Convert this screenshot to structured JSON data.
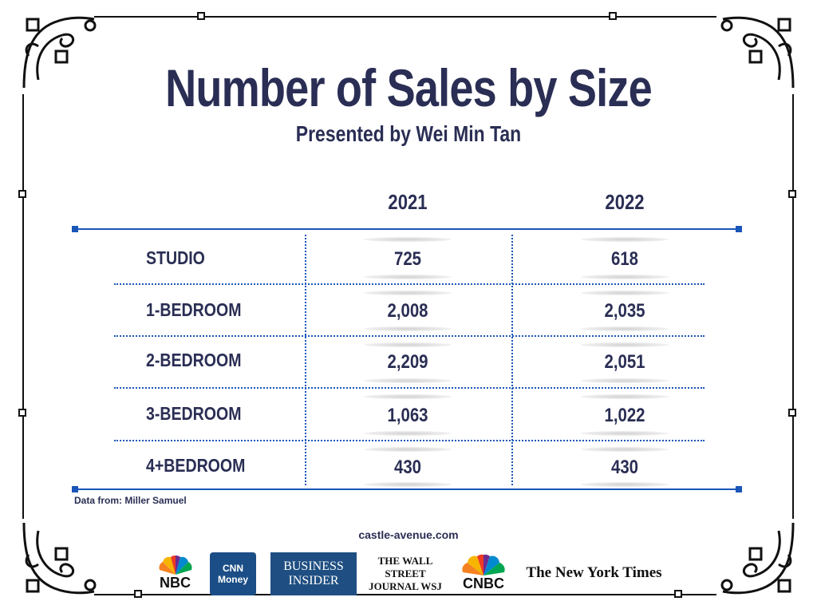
{
  "chart_data": {
    "type": "table",
    "title": "Number of Sales by Size",
    "subtitle": "Presented by Wei Min Tan",
    "columns": [
      "2021",
      "2022"
    ],
    "rows": [
      {
        "label": "STUDIO",
        "values": [
          "725",
          "618"
        ]
      },
      {
        "label": "1-BEDROOM",
        "values": [
          "2,008",
          "2,035"
        ]
      },
      {
        "label": "2-BEDROOM",
        "values": [
          "2,209",
          "2,051"
        ]
      },
      {
        "label": "3-BEDROOM",
        "values": [
          "1,063",
          "1,022"
        ]
      },
      {
        "label": "4+BEDROOM",
        "values": [
          "430",
          "430"
        ]
      }
    ],
    "source": "Data from: Miller Samuel"
  },
  "footer": {
    "site": "castle-avenue.com",
    "logos": [
      {
        "name": "nbc-logo",
        "text": "NBC"
      },
      {
        "name": "cnn-money-logo",
        "text": "CNN Money"
      },
      {
        "name": "business-insider-logo",
        "text": "BUSINESS INSIDER"
      },
      {
        "name": "wsj-logo",
        "text": "THE WALL STREET JOURNAL WSJ"
      },
      {
        "name": "cnbc-logo",
        "text": "CNBC"
      },
      {
        "name": "nyt-logo",
        "text": "The New York Times"
      }
    ]
  },
  "colors": {
    "text": "#2a2e54",
    "accent": "#1a56b8",
    "frame": "#111111"
  }
}
